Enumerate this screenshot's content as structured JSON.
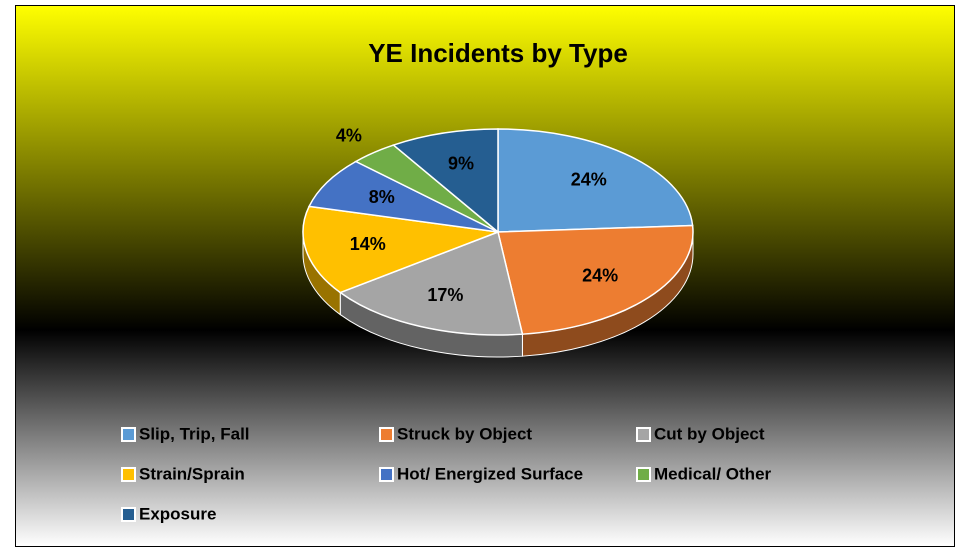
{
  "chart_data": {
    "type": "pie",
    "title": "YE Incidents by Type",
    "categories": [
      "Slip, Trip, Fall",
      "Struck by Object",
      "Cut by Object",
      "Strain/Sprain",
      "Hot/ Energized Surface",
      "Medical/ Other",
      "Exposure"
    ],
    "values": [
      24,
      24,
      17,
      14,
      8,
      4,
      9
    ],
    "value_labels": [
      "24%",
      "24%",
      "17%",
      "14%",
      "8%",
      "4%",
      "9%"
    ],
    "colors": [
      "#5b9bd5",
      "#ed7d31",
      "#a5a5a5",
      "#ffc000",
      "#4472c4",
      "#70ad47",
      "#255e91"
    ],
    "legend": "bottom"
  }
}
